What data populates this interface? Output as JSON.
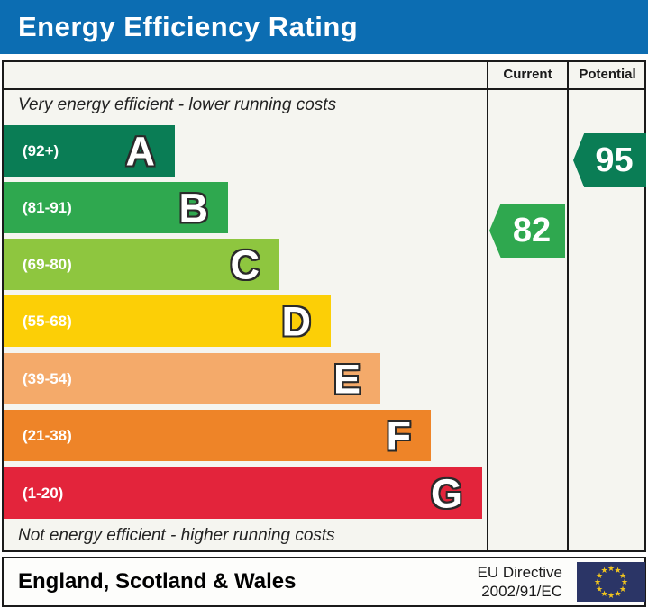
{
  "title": "Energy Efficiency Rating",
  "columns": {
    "current": "Current",
    "potential": "Potential"
  },
  "captions": {
    "top": "Very energy efficient - lower running costs",
    "bottom": "Not energy efficient - higher running costs"
  },
  "bands": [
    {
      "letter": "A",
      "range": "(92+)",
      "color": "#0a7d55"
    },
    {
      "letter": "B",
      "range": "(81-91)",
      "color": "#2fa84f"
    },
    {
      "letter": "C",
      "range": "(69-80)",
      "color": "#8ec63f"
    },
    {
      "letter": "D",
      "range": "(55-68)",
      "color": "#fccf06"
    },
    {
      "letter": "E",
      "range": "(39-54)",
      "color": "#f4aa6a"
    },
    {
      "letter": "F",
      "range": "(21-38)",
      "color": "#ee8428"
    },
    {
      "letter": "G",
      "range": "(1-20)",
      "color": "#e3243b"
    }
  ],
  "ratings": {
    "current": {
      "value": "82",
      "band": "B",
      "color": "#2fa84f"
    },
    "potential": {
      "value": "95",
      "band": "A",
      "color": "#0a7d55"
    }
  },
  "footer": {
    "region": "England, Scotland & Wales",
    "directive_line1": "EU Directive",
    "directive_line2": "2002/91/EC",
    "flag_blue": "#2b3566",
    "flag_star": "#f0c41e"
  },
  "colors": {
    "title_bar": "#0c6db2",
    "table_background": "#f5f5f0",
    "border": "#1a1a1a"
  },
  "chart_data": {
    "type": "bar",
    "title": "Energy Efficiency Rating",
    "categories": [
      "A",
      "B",
      "C",
      "D",
      "E",
      "F",
      "G"
    ],
    "band_ranges": [
      "92+",
      "81-91",
      "69-80",
      "55-68",
      "39-54",
      "21-38",
      "1-20"
    ],
    "band_colors": [
      "#0a7d55",
      "#2fa84f",
      "#8ec63f",
      "#fccf06",
      "#f4aa6a",
      "#ee8428",
      "#e3243b"
    ],
    "bar_relative_lengths": [
      194,
      253,
      310,
      367,
      422,
      478,
      535
    ],
    "current_rating": 82,
    "current_band": "B",
    "potential_rating": 95,
    "potential_band": "A",
    "annotations": [
      "Very energy efficient - lower running costs",
      "Not energy efficient - higher running costs"
    ],
    "region": "England, Scotland & Wales",
    "directive": "EU Directive 2002/91/EC",
    "legend_position": "none",
    "grid": false
  }
}
